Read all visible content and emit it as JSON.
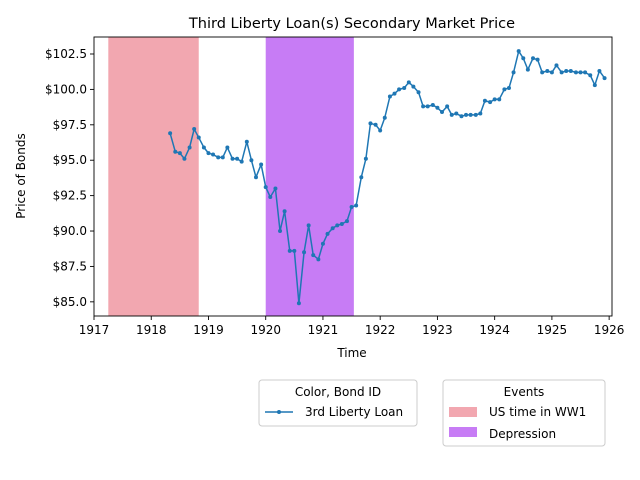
{
  "chart_data": {
    "type": "line",
    "title": "Third Liberty Loan(s) Secondary Market Price",
    "xlabel": "Time",
    "ylabel": "Price of Bonds",
    "xlim": [
      1917.0,
      1926.05
    ],
    "ylim": [
      84.0,
      103.7
    ],
    "x_ticks": [
      1917,
      1918,
      1919,
      1920,
      1921,
      1922,
      1923,
      1924,
      1925,
      1926
    ],
    "x_tick_labels": [
      "1917",
      "1918",
      "1919",
      "1920",
      "1921",
      "1922",
      "1923",
      "1924",
      "1925",
      "1926"
    ],
    "y_ticks": [
      85.0,
      87.5,
      90.0,
      92.5,
      95.0,
      97.5,
      100.0,
      102.5
    ],
    "y_tick_labels": [
      "$85.0",
      "$87.5",
      "$90.0",
      "$92.5",
      "$95.0",
      "$97.5",
      "$100.0",
      "$102.5"
    ],
    "grid": false,
    "series_legend": {
      "title": "Color, Bond ID",
      "placement": "bottom-center"
    },
    "events_legend": {
      "title": "Events",
      "placement": "bottom-right"
    },
    "bands": [
      {
        "name": "US time in WW1",
        "start": 1917.25,
        "end": 1918.83,
        "color": "#f2a7b0"
      },
      {
        "name": "Depression",
        "start": 1920.0,
        "end": 1921.54,
        "color": "#c77cf5"
      }
    ],
    "series": [
      {
        "name": "3rd Liberty Loan",
        "color": "#1f77b4",
        "points": [
          [
            1918.33,
            96.9
          ],
          [
            1918.42,
            95.6
          ],
          [
            1918.5,
            95.5
          ],
          [
            1918.58,
            95.1
          ],
          [
            1918.67,
            95.9
          ],
          [
            1918.75,
            97.2
          ],
          [
            1918.83,
            96.6
          ],
          [
            1918.92,
            95.9
          ],
          [
            1919.0,
            95.5
          ],
          [
            1919.08,
            95.4
          ],
          [
            1919.17,
            95.2
          ],
          [
            1919.25,
            95.2
          ],
          [
            1919.33,
            95.9
          ],
          [
            1919.42,
            95.1
          ],
          [
            1919.5,
            95.1
          ],
          [
            1919.58,
            94.9
          ],
          [
            1919.67,
            96.3
          ],
          [
            1919.75,
            95.0
          ],
          [
            1919.83,
            93.8
          ],
          [
            1919.92,
            94.7
          ],
          [
            1920.0,
            93.1
          ],
          [
            1920.08,
            92.4
          ],
          [
            1920.17,
            93.0
          ],
          [
            1920.25,
            90.0
          ],
          [
            1920.33,
            91.4
          ],
          [
            1920.42,
            88.6
          ],
          [
            1920.5,
            88.6
          ],
          [
            1920.58,
            84.9
          ],
          [
            1920.67,
            88.5
          ],
          [
            1920.75,
            90.4
          ],
          [
            1920.83,
            88.3
          ],
          [
            1920.92,
            88.0
          ],
          [
            1921.0,
            89.1
          ],
          [
            1921.08,
            89.8
          ],
          [
            1921.17,
            90.2
          ],
          [
            1921.25,
            90.4
          ],
          [
            1921.33,
            90.5
          ],
          [
            1921.42,
            90.7
          ],
          [
            1921.5,
            91.7
          ],
          [
            1921.58,
            91.8
          ],
          [
            1921.67,
            93.8
          ],
          [
            1921.75,
            95.1
          ],
          [
            1921.83,
            97.6
          ],
          [
            1921.92,
            97.5
          ],
          [
            1922.0,
            97.1
          ],
          [
            1922.08,
            98.0
          ],
          [
            1922.17,
            99.5
          ],
          [
            1922.25,
            99.7
          ],
          [
            1922.33,
            100.0
          ],
          [
            1922.42,
            100.1
          ],
          [
            1922.5,
            100.5
          ],
          [
            1922.58,
            100.2
          ],
          [
            1922.67,
            99.8
          ],
          [
            1922.75,
            98.8
          ],
          [
            1922.83,
            98.8
          ],
          [
            1922.92,
            98.9
          ],
          [
            1923.0,
            98.7
          ],
          [
            1923.08,
            98.4
          ],
          [
            1923.17,
            98.8
          ],
          [
            1923.25,
            98.2
          ],
          [
            1923.33,
            98.3
          ],
          [
            1923.42,
            98.1
          ],
          [
            1923.5,
            98.2
          ],
          [
            1923.58,
            98.2
          ],
          [
            1923.67,
            98.2
          ],
          [
            1923.75,
            98.3
          ],
          [
            1923.83,
            99.2
          ],
          [
            1923.92,
            99.1
          ],
          [
            1924.0,
            99.3
          ],
          [
            1924.08,
            99.3
          ],
          [
            1924.17,
            100.0
          ],
          [
            1924.25,
            100.1
          ],
          [
            1924.33,
            101.2
          ],
          [
            1924.42,
            102.7
          ],
          [
            1924.5,
            102.2
          ],
          [
            1924.58,
            101.4
          ],
          [
            1924.67,
            102.2
          ],
          [
            1924.75,
            102.1
          ],
          [
            1924.83,
            101.2
          ],
          [
            1924.92,
            101.3
          ],
          [
            1925.0,
            101.2
          ],
          [
            1925.08,
            101.7
          ],
          [
            1925.17,
            101.2
          ],
          [
            1925.25,
            101.3
          ],
          [
            1925.33,
            101.3
          ],
          [
            1925.42,
            101.2
          ],
          [
            1925.5,
            101.2
          ],
          [
            1925.58,
            101.2
          ],
          [
            1925.67,
            101.0
          ],
          [
            1925.75,
            100.3
          ],
          [
            1925.83,
            101.3
          ],
          [
            1925.92,
            100.8
          ]
        ]
      }
    ]
  }
}
